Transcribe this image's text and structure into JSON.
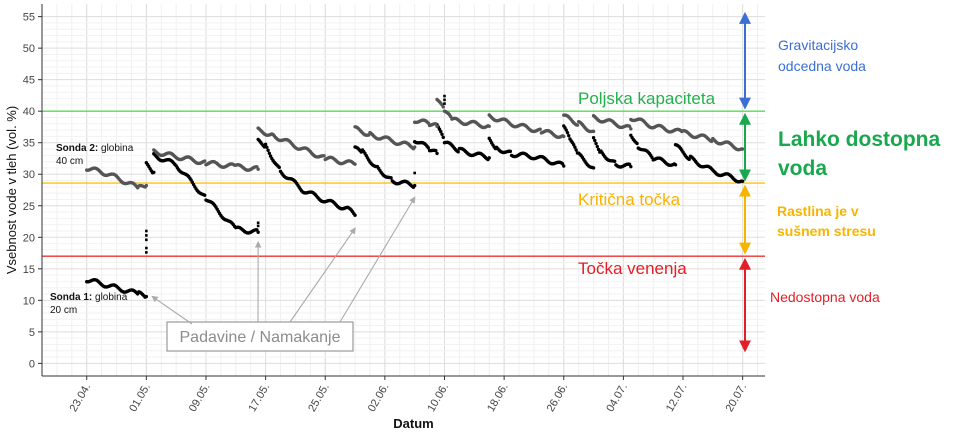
{
  "chart_data": {
    "type": "scatter",
    "xlabel": "Datum",
    "ylabel": "Vsebnost vode v tleh (vol. %)",
    "x_ticks": [
      "23.04.",
      "01.05.",
      "09.05.",
      "17.05.",
      "25.05.",
      "02.06.",
      "10.06.",
      "18.06.",
      "26.06.",
      "04.07.",
      "12.07.",
      "20.07."
    ],
    "xlim": [
      "2024-04-17",
      "2024-07-23"
    ],
    "ylim": [
      -2,
      57
    ],
    "y_ticks": [
      0,
      5,
      10,
      15,
      20,
      25,
      30,
      35,
      40,
      45,
      50,
      55
    ],
    "grid": true,
    "thresholds": [
      {
        "value": 40,
        "label": "Poljska kapaciteta",
        "color": "#55DD55",
        "text_color": "#22B24C"
      },
      {
        "value": 28.6,
        "label": "Kritična točka",
        "color": "#FFC20E",
        "text_color": "#F9B200"
      },
      {
        "value": 17,
        "label": "Točka venenja",
        "color": "#EE3333",
        "text_color": "#E41E26"
      }
    ],
    "zones": [
      {
        "label_lines": [
          "Gravitacijsko",
          "odcedna voda"
        ],
        "color": "#3B6FD1",
        "y_range": [
          40,
          56
        ]
      },
      {
        "label_lines": [
          "Lahko dostopna",
          "voda"
        ],
        "color": "#1AA84E",
        "y_range": [
          28.6,
          40
        ]
      },
      {
        "label_lines": [
          "Rastlina je v",
          "sušnem stresu"
        ],
        "color": "#F7B500",
        "y_range": [
          17,
          28.6
        ]
      },
      {
        "label_lines": [
          "Nedostopna voda"
        ],
        "color": "#E41E26",
        "y_range": [
          1.5,
          17
        ]
      }
    ],
    "series": [
      {
        "name_bold": "Sonda 1:",
        "name_rest": " globina",
        "name_line2": "20 cm",
        "color": "#000000",
        "segments": [
          [
            [
              "2024-04-23",
              13.3
            ],
            [
              "2024-04-26",
              12.3
            ],
            [
              "2024-04-30",
              11.0
            ],
            [
              "2024-05-01",
              10.6
            ]
          ],
          [
            [
              "2024-05-01",
              31.5
            ],
            [
              "2024-05-02",
              30.3
            ]
          ],
          [
            [
              "2024-05-02",
              33.0
            ],
            [
              "2024-05-05",
              31.5
            ],
            [
              "2024-05-09",
              26.2
            ],
            [
              "2024-05-12",
              22.5
            ],
            [
              "2024-05-13",
              21.3
            ],
            [
              "2024-05-16",
              20.8
            ]
          ],
          [
            [
              "2024-05-16",
              35.2
            ],
            [
              "2024-05-17",
              34.5
            ],
            [
              "2024-05-19",
              30.5
            ],
            [
              "2024-05-22",
              27.5
            ],
            [
              "2024-05-25",
              25.8
            ],
            [
              "2024-05-28",
              24.5
            ],
            [
              "2024-05-29",
              23.5
            ]
          ],
          [
            [
              "2024-05-29",
              34.0
            ],
            [
              "2024-05-30",
              33.5
            ],
            [
              "2024-06-01",
              31.0
            ],
            [
              "2024-06-03",
              29.0
            ],
            [
              "2024-06-06",
              28.2
            ]
          ],
          [
            [
              "2024-06-06",
              35.5
            ],
            [
              "2024-06-08",
              34.0
            ],
            [
              "2024-06-09",
              33.3
            ]
          ],
          [
            [
              "2024-06-09",
              38.0
            ],
            [
              "2024-06-10",
              35.0
            ],
            [
              "2024-06-12",
              33.8
            ],
            [
              "2024-06-16",
              32.6
            ]
          ],
          [
            [
              "2024-06-16",
              35.5
            ],
            [
              "2024-06-17",
              34.2
            ],
            [
              "2024-06-19",
              33.2
            ],
            [
              "2024-06-22",
              32.8
            ],
            [
              "2024-06-25",
              31.8
            ],
            [
              "2024-06-26",
              31.3
            ]
          ],
          [
            [
              "2024-06-26",
              37.5
            ],
            [
              "2024-06-27",
              35.0
            ],
            [
              "2024-06-28",
              33.0
            ],
            [
              "2024-06-30",
              31.0
            ]
          ],
          [
            [
              "2024-06-30",
              35.5
            ],
            [
              "2024-07-01",
              33.5
            ],
            [
              "2024-07-03",
              31.6
            ],
            [
              "2024-07-05",
              31.2
            ]
          ],
          [
            [
              "2024-07-05",
              36.5
            ],
            [
              "2024-07-06",
              34.5
            ],
            [
              "2024-07-08",
              32.5
            ],
            [
              "2024-07-11",
              31.5
            ]
          ],
          [
            [
              "2024-07-11",
              34.5
            ],
            [
              "2024-07-13",
              32.5
            ],
            [
              "2024-07-16",
              30.5
            ],
            [
              "2024-07-20",
              28.9
            ]
          ]
        ]
      },
      {
        "name_bold": "Sonda 2:",
        "name_rest": " globina",
        "name_line2": "40 cm",
        "color": "#555555",
        "segments": [
          [
            [
              "2024-04-23",
              31.0
            ],
            [
              "2024-04-26",
              30.0
            ],
            [
              "2024-04-30",
              27.8
            ],
            [
              "2024-05-01",
              28.2
            ]
          ],
          [
            [
              "2024-05-02",
              33.6
            ],
            [
              "2024-05-05",
              32.8
            ],
            [
              "2024-05-09",
              31.8
            ],
            [
              "2024-05-13",
              31.2
            ],
            [
              "2024-05-16",
              30.8
            ]
          ],
          [
            [
              "2024-05-16",
              37.0
            ],
            [
              "2024-05-18",
              36.2
            ],
            [
              "2024-05-21",
              34.5
            ],
            [
              "2024-05-25",
              32.5
            ],
            [
              "2024-05-29",
              31.6
            ]
          ],
          [
            [
              "2024-05-29",
              37.2
            ],
            [
              "2024-05-31",
              36.3
            ],
            [
              "2024-06-03",
              35.3
            ],
            [
              "2024-06-06",
              34.3
            ]
          ],
          [
            [
              "2024-06-06",
              38.6
            ],
            [
              "2024-06-08",
              38.0
            ],
            [
              "2024-06-09",
              37.6
            ]
          ],
          [
            [
              "2024-06-09",
              42.0
            ],
            [
              "2024-06-10",
              40.0
            ],
            [
              "2024-06-11",
              38.6
            ],
            [
              "2024-06-16",
              37.6
            ]
          ],
          [
            [
              "2024-06-16",
              39.2
            ],
            [
              "2024-06-19",
              38.0
            ],
            [
              "2024-06-23",
              36.8
            ],
            [
              "2024-06-26",
              36.0
            ]
          ],
          [
            [
              "2024-06-26",
              39.2
            ],
            [
              "2024-06-28",
              38.0
            ],
            [
              "2024-06-30",
              36.8
            ]
          ],
          [
            [
              "2024-06-30",
              39.0
            ],
            [
              "2024-07-03",
              38.0
            ],
            [
              "2024-07-05",
              37.2
            ]
          ],
          [
            [
              "2024-07-05",
              39.0
            ],
            [
              "2024-07-08",
              37.6
            ],
            [
              "2024-07-12",
              36.6
            ],
            [
              "2024-07-16",
              35.5
            ],
            [
              "2024-07-20",
              34.0
            ]
          ]
        ]
      }
    ],
    "irrigation_events": [
      {
        "date": "2024-05-01",
        "values": [
          21.0,
          20.3,
          19.6,
          18.3,
          17.6
        ]
      },
      {
        "date": "2024-05-16",
        "values": [
          22.3,
          21.8
        ]
      },
      {
        "date": "2024-06-06",
        "values": [
          30.2
        ]
      },
      {
        "date": "2024-06-10",
        "values": [
          42.4,
          41.8,
          41.2
        ]
      }
    ],
    "annotation": {
      "label": "Padavine / Namakanje",
      "targets": [
        [
          "2024-05-01",
          10.6
        ],
        [
          "2024-05-16",
          20.8
        ],
        [
          "2024-05-29",
          23.0
        ],
        [
          "2024-06-06",
          27.9
        ]
      ]
    }
  }
}
